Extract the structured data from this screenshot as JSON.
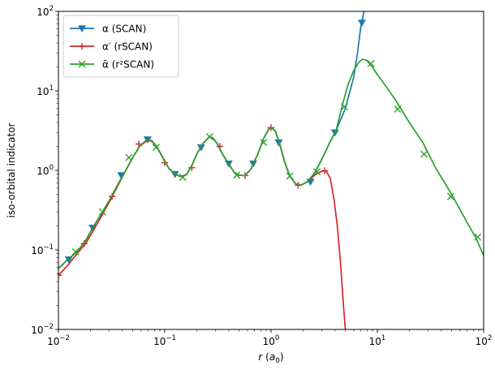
{
  "chart_data": {
    "type": "line",
    "xscale": "log",
    "yscale": "log",
    "xlim": [
      0.01,
      100
    ],
    "ylim": [
      0.01,
      100
    ],
    "xlabel_parts": [
      {
        "t": "r",
        "style": "italic"
      },
      {
        "t": " ("
      },
      {
        "t": "a",
        "style": "italic"
      },
      {
        "t": "0",
        "sub": true
      },
      {
        "t": ")"
      }
    ],
    "ylabel": "iso-orbital indicator",
    "x_ticks": [
      {
        "value": 0.01,
        "base": "10",
        "exp": "−2"
      },
      {
        "value": 0.1,
        "base": "10",
        "exp": "−1"
      },
      {
        "value": 1,
        "base": "10",
        "exp": "0"
      },
      {
        "value": 10,
        "base": "10",
        "exp": "1"
      },
      {
        "value": 100,
        "base": "10",
        "exp": "2"
      }
    ],
    "y_ticks": [
      {
        "value": 0.01,
        "base": "10",
        "exp": "−2"
      },
      {
        "value": 0.1,
        "base": "10",
        "exp": "−1"
      },
      {
        "value": 1,
        "base": "10",
        "exp": "0"
      },
      {
        "value": 10,
        "base": "10",
        "exp": "1"
      },
      {
        "value": 100,
        "base": "10",
        "exp": "2"
      }
    ],
    "legend_position": "upper-left",
    "series": [
      {
        "name": "α (SCAN)",
        "color": "#1f77b4",
        "marker": "triangle-down",
        "curve": [
          [
            0.01,
            0.058
          ],
          [
            0.012,
            0.074
          ],
          [
            0.015,
            0.095
          ],
          [
            0.018,
            0.13
          ],
          [
            0.021,
            0.19
          ],
          [
            0.026,
            0.3
          ],
          [
            0.031,
            0.45
          ],
          [
            0.037,
            0.7
          ],
          [
            0.043,
            1.0
          ],
          [
            0.05,
            1.45
          ],
          [
            0.058,
            2.0
          ],
          [
            0.066,
            2.35
          ],
          [
            0.07,
            2.45
          ],
          [
            0.076,
            2.35
          ],
          [
            0.085,
            1.95
          ],
          [
            0.1,
            1.3
          ],
          [
            0.11,
            1.05
          ],
          [
            0.125,
            0.9
          ],
          [
            0.14,
            0.84
          ],
          [
            0.16,
            0.88
          ],
          [
            0.18,
            1.15
          ],
          [
            0.2,
            1.6
          ],
          [
            0.23,
            2.2
          ],
          [
            0.26,
            2.6
          ],
          [
            0.28,
            2.6
          ],
          [
            0.31,
            2.2
          ],
          [
            0.35,
            1.6
          ],
          [
            0.4,
            1.2
          ],
          [
            0.45,
            0.95
          ],
          [
            0.5,
            0.87
          ],
          [
            0.57,
            0.86
          ],
          [
            0.65,
            1.05
          ],
          [
            0.75,
            1.6
          ],
          [
            0.85,
            2.5
          ],
          [
            0.95,
            3.3
          ],
          [
            1.0,
            3.5
          ],
          [
            1.1,
            3.1
          ],
          [
            1.2,
            2.2
          ],
          [
            1.35,
            1.25
          ],
          [
            1.5,
            0.85
          ],
          [
            1.7,
            0.68
          ],
          [
            1.9,
            0.65
          ],
          [
            2.2,
            0.72
          ],
          [
            2.6,
            0.95
          ],
          [
            3.1,
            1.5
          ],
          [
            3.6,
            2.3
          ],
          [
            4.1,
            3.2
          ],
          [
            5.0,
            6.0
          ],
          [
            6.0,
            15
          ],
          [
            6.5,
            30
          ],
          [
            7.0,
            65
          ],
          [
            7.5,
            100
          ]
        ],
        "markers": [
          [
            0.0125,
            0.076
          ],
          [
            0.021,
            0.19
          ],
          [
            0.039,
            0.87
          ],
          [
            0.069,
            2.45
          ],
          [
            0.125,
            0.9
          ],
          [
            0.22,
            1.95
          ],
          [
            0.4,
            1.22
          ],
          [
            0.68,
            1.22
          ],
          [
            1.18,
            2.25
          ],
          [
            2.35,
            0.72
          ],
          [
            4.0,
            3.0
          ],
          [
            7.15,
            72
          ]
        ]
      },
      {
        "name": "α′ (rSCAN)",
        "color": "#d62728",
        "marker": "plus",
        "curve": [
          [
            0.01,
            0.048
          ],
          [
            0.012,
            0.062
          ],
          [
            0.015,
            0.09
          ],
          [
            0.018,
            0.12
          ],
          [
            0.021,
            0.17
          ],
          [
            0.026,
            0.28
          ],
          [
            0.031,
            0.43
          ],
          [
            0.037,
            0.68
          ],
          [
            0.043,
            1.0
          ],
          [
            0.05,
            1.45
          ],
          [
            0.058,
            2.0
          ],
          [
            0.066,
            2.3
          ],
          [
            0.07,
            2.4
          ],
          [
            0.076,
            2.3
          ],
          [
            0.085,
            1.95
          ],
          [
            0.1,
            1.3
          ],
          [
            0.11,
            1.05
          ],
          [
            0.125,
            0.9
          ],
          [
            0.14,
            0.84
          ],
          [
            0.16,
            0.88
          ],
          [
            0.18,
            1.15
          ],
          [
            0.2,
            1.6
          ],
          [
            0.23,
            2.2
          ],
          [
            0.26,
            2.6
          ],
          [
            0.28,
            2.6
          ],
          [
            0.31,
            2.2
          ],
          [
            0.35,
            1.6
          ],
          [
            0.4,
            1.2
          ],
          [
            0.45,
            0.95
          ],
          [
            0.5,
            0.87
          ],
          [
            0.57,
            0.86
          ],
          [
            0.65,
            1.05
          ],
          [
            0.75,
            1.6
          ],
          [
            0.85,
            2.5
          ],
          [
            0.95,
            3.3
          ],
          [
            1.0,
            3.5
          ],
          [
            1.1,
            3.1
          ],
          [
            1.2,
            2.2
          ],
          [
            1.35,
            1.25
          ],
          [
            1.5,
            0.85
          ],
          [
            1.7,
            0.68
          ],
          [
            1.9,
            0.65
          ],
          [
            2.2,
            0.72
          ],
          [
            2.6,
            0.88
          ],
          [
            3.0,
            0.98
          ],
          [
            3.3,
            0.98
          ],
          [
            3.6,
            0.8
          ],
          [
            3.9,
            0.45
          ],
          [
            4.2,
            0.2
          ],
          [
            4.5,
            0.07
          ],
          [
            4.8,
            0.02
          ],
          [
            5.0,
            0.01
          ]
        ],
        "markers": [
          [
            0.01,
            0.048
          ],
          [
            0.0175,
            0.12
          ],
          [
            0.032,
            0.47
          ],
          [
            0.057,
            2.15
          ],
          [
            0.1,
            1.25
          ],
          [
            0.18,
            1.08
          ],
          [
            0.33,
            2.0
          ],
          [
            0.57,
            0.86
          ],
          [
            1.0,
            3.45
          ],
          [
            1.8,
            0.65
          ],
          [
            3.2,
            0.99
          ]
        ]
      },
      {
        "name": "ᾱ (r²SCAN)",
        "color": "#2ca02c",
        "marker": "x",
        "curve": [
          [
            0.01,
            0.058
          ],
          [
            0.012,
            0.074
          ],
          [
            0.015,
            0.095
          ],
          [
            0.018,
            0.13
          ],
          [
            0.021,
            0.19
          ],
          [
            0.026,
            0.3
          ],
          [
            0.031,
            0.45
          ],
          [
            0.037,
            0.7
          ],
          [
            0.043,
            1.0
          ],
          [
            0.05,
            1.45
          ],
          [
            0.058,
            2.0
          ],
          [
            0.066,
            2.35
          ],
          [
            0.07,
            2.45
          ],
          [
            0.076,
            2.35
          ],
          [
            0.085,
            1.95
          ],
          [
            0.1,
            1.3
          ],
          [
            0.11,
            1.05
          ],
          [
            0.125,
            0.9
          ],
          [
            0.14,
            0.84
          ],
          [
            0.16,
            0.88
          ],
          [
            0.18,
            1.15
          ],
          [
            0.2,
            1.6
          ],
          [
            0.23,
            2.2
          ],
          [
            0.26,
            2.6
          ],
          [
            0.28,
            2.6
          ],
          [
            0.31,
            2.2
          ],
          [
            0.35,
            1.6
          ],
          [
            0.4,
            1.2
          ],
          [
            0.45,
            0.95
          ],
          [
            0.5,
            0.87
          ],
          [
            0.57,
            0.86
          ],
          [
            0.65,
            1.05
          ],
          [
            0.75,
            1.6
          ],
          [
            0.85,
            2.5
          ],
          [
            0.95,
            3.3
          ],
          [
            1.0,
            3.5
          ],
          [
            1.1,
            3.1
          ],
          [
            1.2,
            2.2
          ],
          [
            1.35,
            1.25
          ],
          [
            1.5,
            0.85
          ],
          [
            1.7,
            0.68
          ],
          [
            1.9,
            0.65
          ],
          [
            2.2,
            0.72
          ],
          [
            2.6,
            0.95
          ],
          [
            3.1,
            1.5
          ],
          [
            3.6,
            2.3
          ],
          [
            4.1,
            3.2
          ],
          [
            4.6,
            6.0
          ],
          [
            5.3,
            12
          ],
          [
            6.0,
            18
          ],
          [
            6.7,
            23
          ],
          [
            7.3,
            25
          ],
          [
            8.0,
            24
          ],
          [
            9.0,
            20
          ],
          [
            10,
            16
          ],
          [
            12,
            11.5
          ],
          [
            15,
            7.5
          ],
          [
            20,
            4.0
          ],
          [
            27,
            2.2
          ],
          [
            35,
            1.1
          ],
          [
            50,
            0.5
          ],
          [
            70,
            0.22
          ],
          [
            85,
            0.14
          ],
          [
            100,
            0.085
          ]
        ],
        "markers": [
          [
            0.0145,
            0.095
          ],
          [
            0.026,
            0.3
          ],
          [
            0.046,
            1.45
          ],
          [
            0.083,
            1.95
          ],
          [
            0.148,
            0.82
          ],
          [
            0.265,
            2.65
          ],
          [
            0.475,
            0.87
          ],
          [
            0.85,
            2.25
          ],
          [
            1.5,
            0.85
          ],
          [
            2.7,
            0.96
          ],
          [
            4.9,
            6.3
          ],
          [
            8.7,
            22
          ],
          [
            15.5,
            5.9
          ],
          [
            27.5,
            1.6
          ],
          [
            49,
            0.47
          ],
          [
            88,
            0.145
          ]
        ]
      }
    ]
  }
}
